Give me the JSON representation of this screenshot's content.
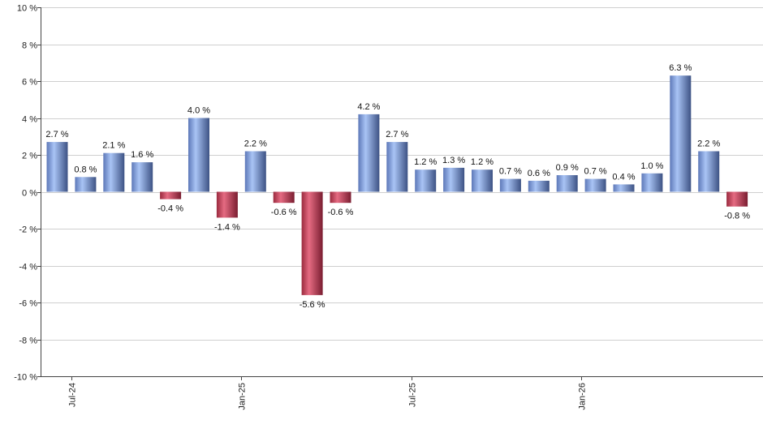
{
  "chart_data": {
    "type": "bar",
    "title": "",
    "xlabel": "",
    "ylabel": "",
    "ylim": [
      -10,
      10
    ],
    "y_ticks": [
      10,
      8,
      6,
      4,
      2,
      0,
      -2,
      -4,
      -6,
      -8,
      -10
    ],
    "y_tick_labels": [
      "10 %",
      "8 %",
      "6 %",
      "4 %",
      "2 %",
      "0 %",
      "-2 %",
      "-4 %",
      "-6 %",
      "-8 %",
      "-10 %"
    ],
    "x_tick_labels": [
      {
        "label": "Jul-24",
        "index": 1
      },
      {
        "label": "Jan-25",
        "index": 7
      },
      {
        "label": "Jul-25",
        "index": 13
      },
      {
        "label": "Jan-26",
        "index": 19
      }
    ],
    "grid": true,
    "legend": "none",
    "values": [
      2.7,
      0.8,
      2.1,
      1.6,
      -0.4,
      4.0,
      -1.4,
      2.2,
      -0.6,
      -5.6,
      -0.6,
      4.2,
      2.7,
      1.2,
      1.3,
      1.2,
      0.7,
      0.6,
      0.9,
      0.7,
      0.4,
      1.0,
      6.3,
      2.2,
      -0.8
    ],
    "labels": [
      "2.7 %",
      "0.8 %",
      "2.1 %",
      "1.6 %",
      "-0.4 %",
      "4.0 %",
      "-1.4 %",
      "2.2 %",
      "-0.6 %",
      "-5.6 %",
      "-0.6 %",
      "4.2 %",
      "2.7 %",
      "1.2 %",
      "1.3 %",
      "1.2 %",
      "0.7 %",
      "0.6 %",
      "0.9 %",
      "0.7 %",
      "0.4 %",
      "1.0 %",
      "6.3 %",
      "2.2 %",
      "-0.8 %"
    ],
    "colors": {
      "positive": "#7f9fe0",
      "negative": "#c8405a",
      "grid": "#cfcfcf",
      "axis": "#444444"
    }
  }
}
